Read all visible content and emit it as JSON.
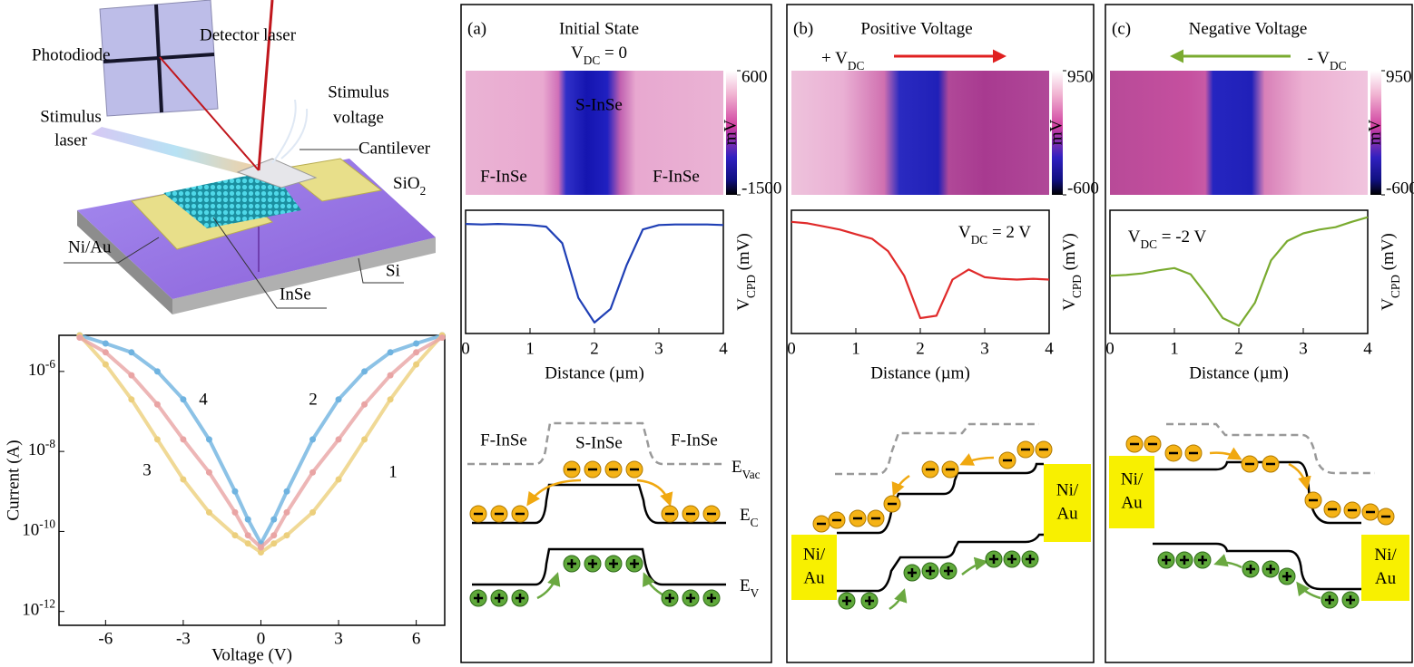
{
  "schematic": {
    "photodiode": "Photodiode",
    "detector_laser": "Detector laser",
    "stimulus_voltage": [
      "Stimulus",
      "voltage"
    ],
    "stimulus_laser": [
      "Stimulus",
      "laser"
    ],
    "cantilever": "Cantilever",
    "sio2": [
      "SiO",
      "2"
    ],
    "ni_au": "Ni/Au",
    "si": "Si",
    "inse": "InSe"
  },
  "chart_data": [
    {
      "type": "scatter",
      "x_label": "Voltage (V)",
      "y_label": "Current (A)",
      "log_y": true,
      "x": [
        -7,
        -6,
        -5,
        -4,
        -3,
        -2,
        -1,
        -0.5,
        0,
        0.5,
        1,
        2,
        3,
        4,
        5,
        6,
        7
      ],
      "xlim": [
        -7.8,
        7.1
      ],
      "xticks": [
        -6,
        -3,
        0,
        3,
        6
      ],
      "ylim": [
        4.5e-13,
        8e-06
      ],
      "yticks": [
        {
          "value": 1e-06,
          "label": [
            "10",
            "-6"
          ]
        },
        {
          "value": 1e-08,
          "label": [
            "10",
            "-8"
          ]
        },
        {
          "value": 1e-10,
          "label": [
            "10",
            "-10"
          ]
        },
        {
          "value": 1e-12,
          "label": [
            "10",
            "-12"
          ]
        }
      ],
      "series": [
        {
          "color": "#6fb3e0",
          "values": [
            8e-06,
            5e-06,
            3e-06,
            1e-06,
            2e-07,
            2e-08,
            1e-09,
            2e-10,
            5e-11,
            2e-10,
            1e-09,
            2e-08,
            2e-07,
            1e-06,
            3e-06,
            5e-06,
            8e-06
          ]
        },
        {
          "color": "#eccf7c",
          "values": [
            8e-06,
            1.5e-06,
            2e-07,
            2e-08,
            2e-09,
            3e-10,
            8e-11,
            5e-11,
            3e-11,
            5e-11,
            8e-11,
            3e-10,
            2e-09,
            2e-08,
            2e-07,
            1.5e-06,
            8e-06
          ]
        },
        {
          "color": "#e9a4a4",
          "values": [
            7e-06,
            3e-06,
            8e-07,
            1.5e-07,
            2e-08,
            3e-09,
            3e-10,
            8e-11,
            4e-11,
            8e-11,
            3e-10,
            3e-09,
            2e-08,
            1.5e-07,
            8e-07,
            3e-06,
            7e-06
          ]
        }
      ],
      "annotations": [
        "1",
        "2",
        "3",
        "4"
      ]
    },
    {
      "type": "line",
      "x": [
        0,
        0.25,
        0.5,
        0.75,
        1,
        1.25,
        1.5,
        1.75,
        2,
        2.25,
        2.5,
        2.75,
        3,
        3.25,
        3.5,
        3.75,
        4
      ],
      "values": [
        450,
        440,
        450,
        440,
        430,
        400,
        100,
        -900,
        -1350,
        -1100,
        -300,
        350,
        430,
        440,
        440,
        440,
        430
      ],
      "color": "#1f3fb5",
      "xlim": [
        0,
        4
      ],
      "xticks": [
        0,
        1,
        2,
        3,
        4
      ],
      "ylim": [
        -1550,
        700
      ],
      "x_label": "Distance (µm)",
      "y_label": [
        "V",
        "CPD",
        " (mV)"
      ]
    },
    {
      "type": "line",
      "x": [
        0,
        0.25,
        0.5,
        0.75,
        1,
        1.25,
        1.5,
        1.75,
        2,
        2.25,
        2.5,
        2.75,
        3,
        3.25,
        3.5,
        3.75,
        4
      ],
      "values": [
        800,
        780,
        740,
        700,
        640,
        580,
        420,
        100,
        -450,
        -420,
        50,
        180,
        80,
        60,
        50,
        60,
        50
      ],
      "color": "#e02a2a",
      "xlim": [
        0,
        4
      ],
      "xticks": [
        0,
        1,
        2,
        3,
        4
      ],
      "ylim": [
        -650,
        950
      ],
      "x_label": "Distance (µm)",
      "y_label": [
        "V",
        "CPD",
        " (mV)"
      ],
      "annotation": [
        "V",
        "DC",
        " = 2 V"
      ]
    },
    {
      "type": "line",
      "x": [
        0,
        0.25,
        0.5,
        0.75,
        1,
        1.25,
        1.5,
        1.75,
        2,
        2.25,
        2.5,
        2.75,
        3,
        3.25,
        3.5,
        3.75,
        4
      ],
      "values": [
        100,
        110,
        130,
        170,
        200,
        120,
        -150,
        -450,
        -550,
        -250,
        300,
        550,
        650,
        700,
        730,
        800,
        860
      ],
      "color": "#7aab30",
      "xlim": [
        0,
        4
      ],
      "xticks": [
        0,
        1,
        2,
        3,
        4
      ],
      "ylim": [
        -650,
        950
      ],
      "x_label": "Distance (µm)",
      "y_label": [
        "V",
        "CPD",
        " (mV)"
      ],
      "annotation": [
        "V",
        "DC",
        " = -2 V"
      ]
    }
  ],
  "panels": [
    {
      "label": "(a)",
      "title": "Initial State",
      "condition": [
        "V",
        "DC",
        " = 0"
      ],
      "heatmap": {
        "regions": [
          "S-InSe",
          "F-InSe",
          "F-InSe"
        ],
        "clim": [
          -1500,
          600
        ],
        "cticks": [
          600,
          -1500
        ],
        "colorbar_label": "mV"
      },
      "band": {
        "labels": [
          "F-InSe",
          "S-InSe",
          "F-InSe"
        ],
        "levels": [
          [
            "E",
            "Vac"
          ],
          [
            "E",
            "C"
          ],
          [
            "E",
            "V"
          ]
        ]
      }
    },
    {
      "label": "(b)",
      "title": "Positive Voltage",
      "condition": [
        "+ V",
        "DC"
      ],
      "heatmap": {
        "clim": [
          -600,
          950
        ],
        "cticks": [
          950,
          -600
        ],
        "colorbar_label": "mV"
      },
      "band": {
        "contacts": [
          [
            "Ni/",
            "Au"
          ],
          [
            "Ni/",
            "Au"
          ]
        ]
      }
    },
    {
      "label": "(c)",
      "title": "Negative Voltage",
      "condition": [
        "- V",
        "DC"
      ],
      "heatmap": {
        "clim": [
          -600,
          950
        ],
        "cticks": [
          950,
          -600
        ],
        "colorbar_label": "mV"
      },
      "band": {
        "contacts": [
          [
            "Ni/",
            "Au"
          ],
          [
            "Ni/",
            "Au"
          ]
        ]
      }
    }
  ]
}
